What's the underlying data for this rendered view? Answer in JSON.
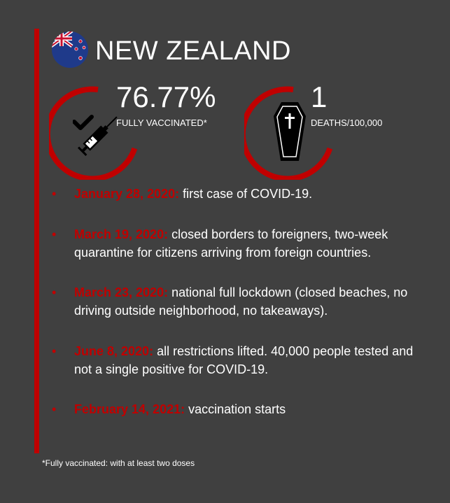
{
  "header": {
    "country": "NEW ZEALAND"
  },
  "stats": {
    "vaccinated_value": "76.77%",
    "vaccinated_label": "FULLY VACCINATED*",
    "deaths_value": "1",
    "deaths_label": "DEATHS/100,000"
  },
  "timeline": [
    {
      "date": "January 28, 2020:",
      "text": "first case of COVID-19."
    },
    {
      "date": "March 19, 2020:",
      "text": "closed borders to foreigners, two-week quarantine for citizens arriving from foreign countries."
    },
    {
      "date": "March 23, 2020:",
      "text": "national full lockdown (closed beaches, no driving outside neighborhood, no takeaways)."
    },
    {
      "date": "June 8, 2020:",
      "text": "all restrictions lifted. 40,000 people tested and not a single positive for COVID-19."
    },
    {
      "date": "February 14, 2021:",
      "text": "vaccination starts"
    }
  ],
  "footnote": "*Fully vaccinated: with at least two doses",
  "icons": {
    "flag": "new-zealand-flag-icon",
    "vaccine": "syringe-check-icon",
    "deaths": "coffin-cross-icon"
  },
  "colors": {
    "accent": "#c00000",
    "background": "#404040",
    "text": "#ffffff"
  }
}
